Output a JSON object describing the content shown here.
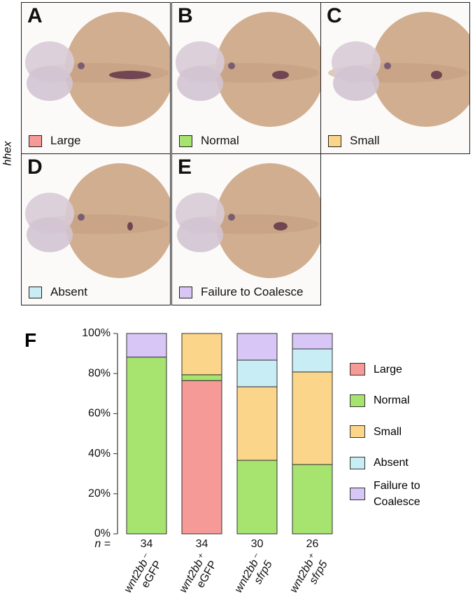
{
  "side_label": "hhex",
  "panels": [
    {
      "letter": "A",
      "label": "Large"
    },
    {
      "letter": "B",
      "label": "Normal"
    },
    {
      "letter": "C",
      "label": "Small"
    },
    {
      "letter": "D",
      "label": "Absent"
    },
    {
      "letter": "E",
      "label": "Failure to Coalesce"
    }
  ],
  "panel_f_letter": "F",
  "chart_data": {
    "type": "bar",
    "stacked": true,
    "categories": [
      [
        "wnt2bb⁻",
        "eGFP"
      ],
      [
        "wnt2bb⁺",
        "eGFP"
      ],
      [
        "wnt2bb⁻",
        "sfrp5"
      ],
      [
        "wnt2bb⁺",
        "sfrp5"
      ]
    ],
    "n_label": "n =",
    "n": [
      34,
      34,
      30,
      26
    ],
    "series": [
      {
        "name": "Large",
        "color": "#f69a97",
        "values": [
          0,
          76.5,
          0,
          0
        ]
      },
      {
        "name": "Normal",
        "color": "#a6e36f",
        "values": [
          88.2,
          2.9,
          36.7,
          34.6
        ]
      },
      {
        "name": "Small",
        "color": "#fbd589",
        "values": [
          0,
          20.6,
          36.7,
          46.2
        ]
      },
      {
        "name": "Absent",
        "color": "#c9edf5",
        "values": [
          0,
          0,
          13.3,
          11.5
        ]
      },
      {
        "name": "Failure to Coalesce",
        "color": "#d8c6f6",
        "values": [
          11.8,
          0,
          13.3,
          7.7
        ]
      }
    ],
    "ylim": [
      0,
      100
    ],
    "yticks": [
      {
        "value": 0,
        "label": "0%"
      },
      {
        "value": 20,
        "label": "20%"
      },
      {
        "value": 40,
        "label": "40%"
      },
      {
        "value": 60,
        "label": "60%"
      },
      {
        "value": 80,
        "label": "80%"
      },
      {
        "value": 100,
        "label": "100%"
      }
    ]
  }
}
